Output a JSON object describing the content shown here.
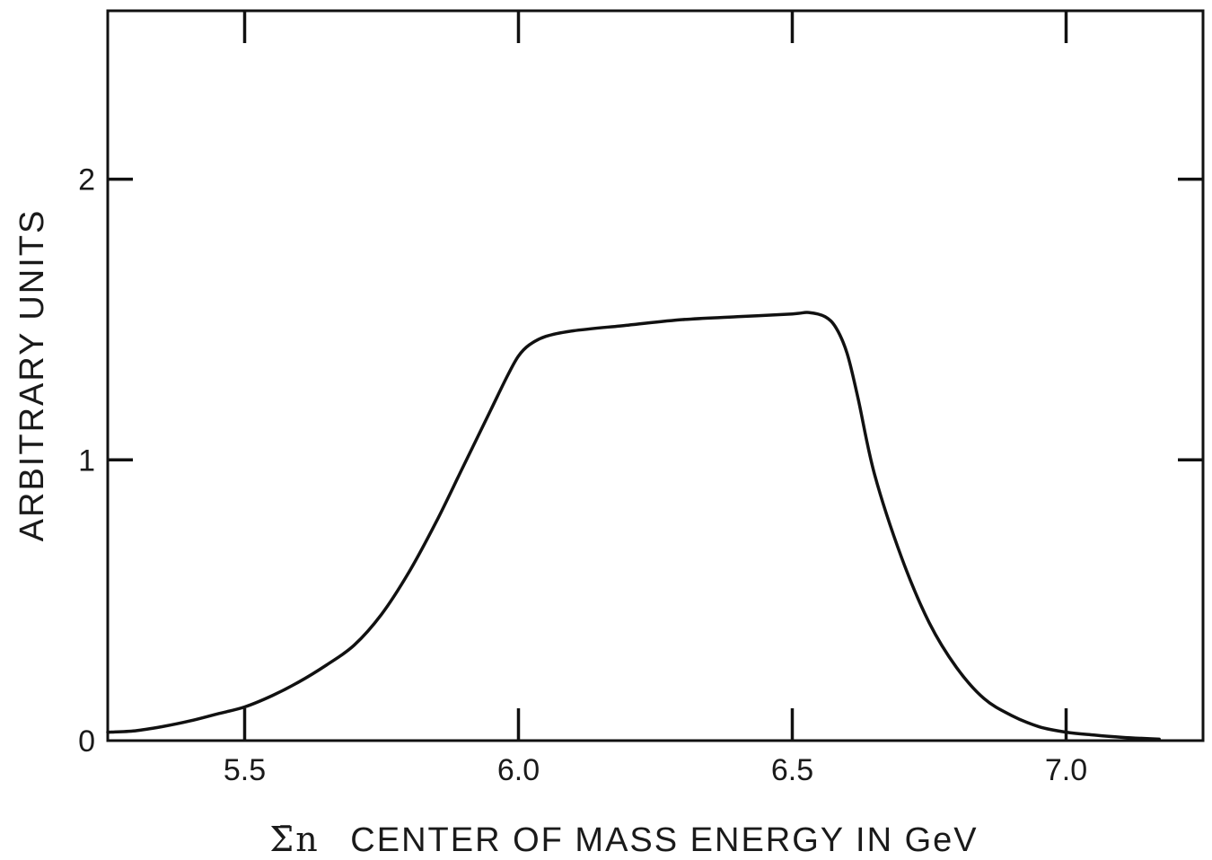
{
  "chart_data": {
    "type": "line",
    "title": "",
    "xlabel": "Σ̄n CENTER OF MASS ENERGY IN GeV",
    "xlabel_parts": {
      "symbol": "Σ̄n",
      "text": "CENTER OF MASS ENERGY IN GeV"
    },
    "ylabel": "ARBITRARY UNITS",
    "xlim": [
      5.25,
      7.25
    ],
    "ylim": [
      0,
      2.6
    ],
    "x_ticks": [
      5.5,
      6.0,
      6.5,
      7.0
    ],
    "x_tick_labels": [
      "5.5",
      "6.0",
      "6.5",
      "7.0"
    ],
    "y_ticks": [
      0,
      1,
      2
    ],
    "y_tick_labels": [
      "0",
      "1",
      "2"
    ],
    "grid": false,
    "legend": "none",
    "series": [
      {
        "x": [
          5.25,
          5.3,
          5.35,
          5.4,
          5.45,
          5.5,
          5.55,
          5.6,
          5.65,
          5.7,
          5.75,
          5.8,
          5.85,
          5.9,
          5.95,
          5.98,
          6.0,
          6.02,
          6.05,
          6.1,
          6.2,
          6.3,
          6.4,
          6.5,
          6.53,
          6.56,
          6.58,
          6.6,
          6.62,
          6.65,
          6.7,
          6.75,
          6.8,
          6.85,
          6.9,
          6.95,
          7.0,
          7.05,
          7.1,
          7.17
        ],
        "y": [
          0.03,
          0.035,
          0.05,
          0.07,
          0.095,
          0.12,
          0.16,
          0.21,
          0.27,
          0.34,
          0.45,
          0.6,
          0.78,
          0.98,
          1.18,
          1.3,
          1.37,
          1.41,
          1.44,
          1.46,
          1.48,
          1.5,
          1.51,
          1.52,
          1.525,
          1.51,
          1.47,
          1.38,
          1.22,
          0.95,
          0.65,
          0.42,
          0.26,
          0.15,
          0.09,
          0.05,
          0.03,
          0.02,
          0.012,
          0.005
        ],
        "color": "#111111"
      }
    ]
  }
}
